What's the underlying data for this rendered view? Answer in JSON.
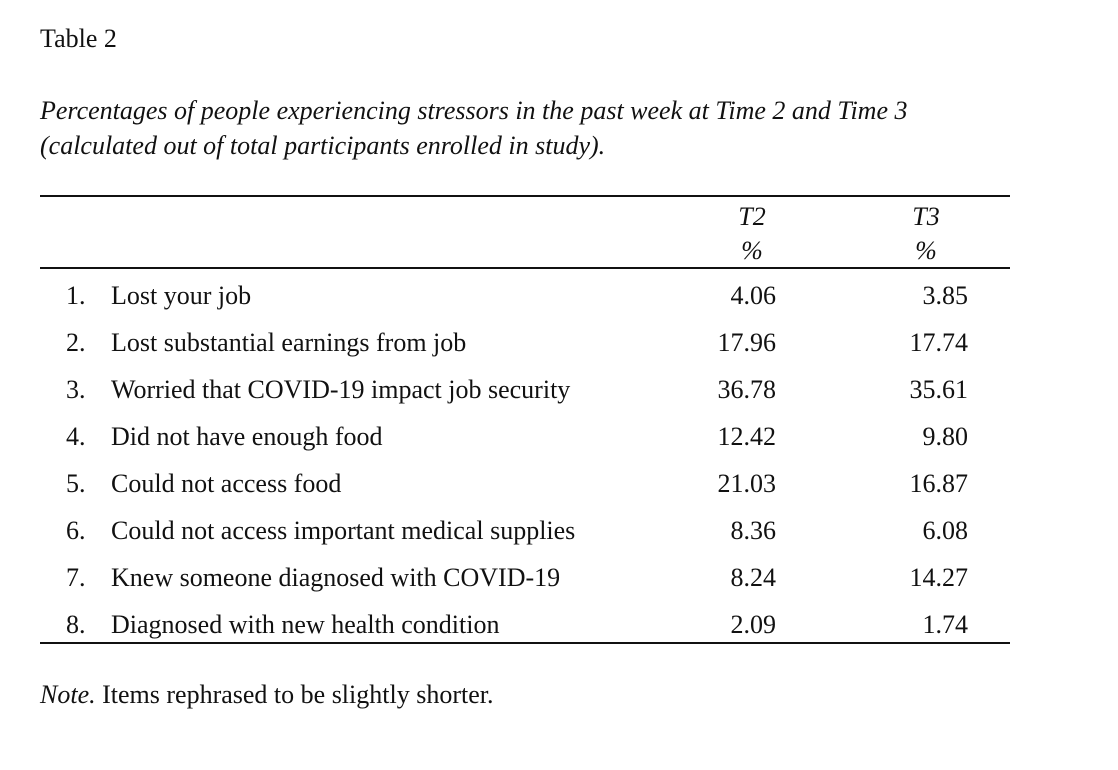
{
  "table_label": "Table 2",
  "caption_line1": "Percentages of people experiencing stressors in the past week at Time 2 and Time 3",
  "caption_line2": "(calculated out of total participants enrolled in study).",
  "columns": [
    {
      "name": "T2",
      "unit": "%"
    },
    {
      "name": "T3",
      "unit": "%"
    }
  ],
  "rows": [
    {
      "num": "1.",
      "item": "Lost your job",
      "t2": "4.06",
      "t3": "3.85"
    },
    {
      "num": "2.",
      "item": "Lost substantial earnings from job",
      "t2": "17.96",
      "t3": "17.74"
    },
    {
      "num": "3.",
      "item": "Worried that COVID-19 impact job security",
      "t2": "36.78",
      "t3": "35.61"
    },
    {
      "num": "4.",
      "item": "Did not have enough food",
      "t2": "12.42",
      "t3": "9.80"
    },
    {
      "num": "5.",
      "item": "Could not access food",
      "t2": "21.03",
      "t3": "16.87"
    },
    {
      "num": "6.",
      "item": "Could not access important medical supplies",
      "t2": "8.36",
      "t3": "6.08"
    },
    {
      "num": "7.",
      "item": "Knew someone diagnosed with COVID-19",
      "t2": "8.24",
      "t3": "14.27"
    },
    {
      "num": "8.",
      "item": "Diagnosed with new health condition",
      "t2": "2.09",
      "t3": "1.74"
    }
  ],
  "note": {
    "label": "Note.",
    "text": " Items rephrased to be slightly shorter."
  }
}
